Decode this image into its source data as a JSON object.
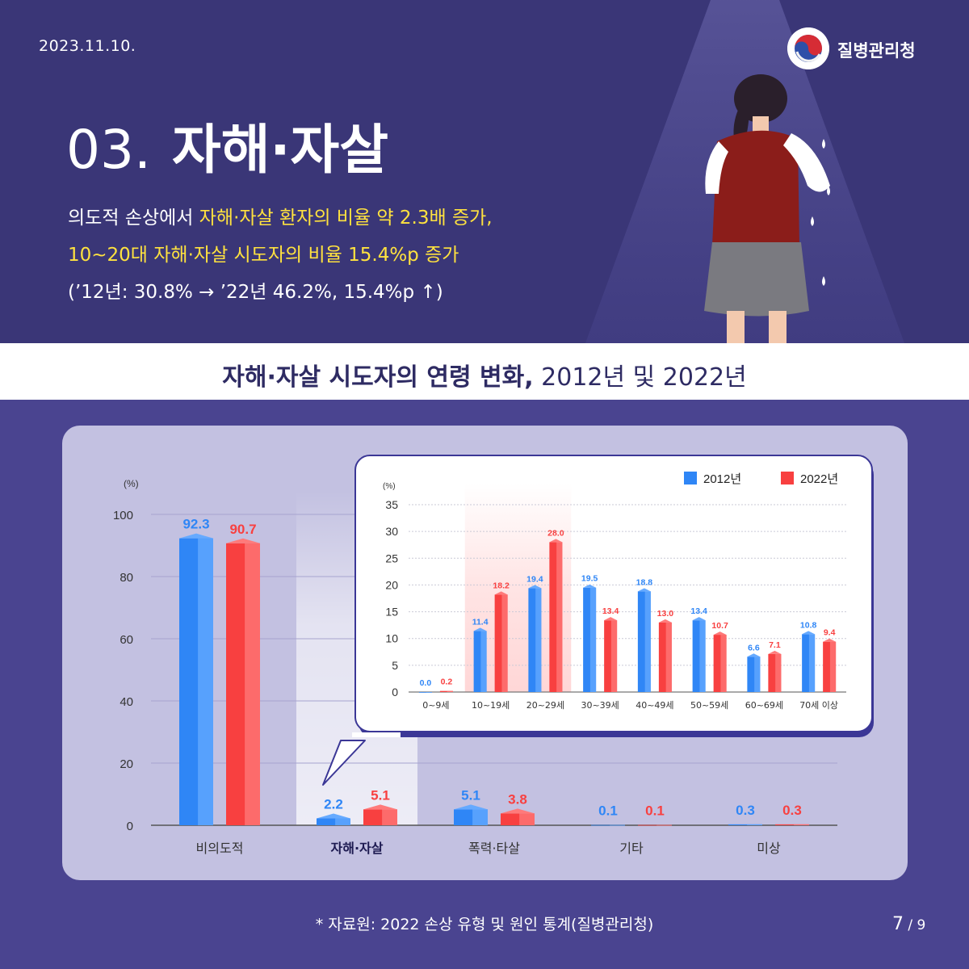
{
  "header": {
    "date": "2023.11.10.",
    "agency": "질병관리청",
    "title_num": "03.",
    "title": "자해·자살",
    "sub1_plain": "의도적 손상에서 ",
    "sub1_highlight": "자해·자살 환자의 비율 약 2.3배 증가,",
    "sub2_highlight": "10~20대 자해·자살 시도자의 비율 15.4%p 증가",
    "sub3": "(’12년: 30.8% → ’22년 46.2%, 15.4%p ↑)"
  },
  "banner": {
    "bold": "자해·자살 시도자의 연령 변화,",
    "plain": " 2012년 및 2022년"
  },
  "colors": {
    "series_2012": "#2f86f6",
    "series_2022": "#f84040",
    "highlight_text": "#ffe23f",
    "background": "#3a3677"
  },
  "chart_data": [
    {
      "type": "bar",
      "ylabel": "(%)",
      "ylim": [
        0,
        100
      ],
      "yticks": [
        0,
        20,
        40,
        60,
        80,
        100
      ],
      "categories": [
        "비의도적",
        "자해·자살",
        "폭력·타살",
        "기타",
        "미상"
      ],
      "emphasized_category": "자해·자살",
      "series": [
        {
          "name": "2012년",
          "values": [
            92.3,
            2.2,
            5.1,
            0.1,
            0.3
          ],
          "labels": [
            "92.3",
            "2.2",
            "5.1",
            "0.1",
            "0.3"
          ]
        },
        {
          "name": "2022년",
          "values": [
            90.7,
            5.1,
            3.8,
            0.1,
            0.3
          ],
          "labels": [
            "90.7",
            "5.1",
            "3.8",
            "0.1",
            "0.3"
          ]
        }
      ],
      "grid": true
    },
    {
      "type": "bar",
      "ylabel": "(%)",
      "ylim": [
        0,
        35
      ],
      "yticks": [
        0,
        5,
        10,
        15,
        20,
        25,
        30,
        35
      ],
      "categories": [
        "0~9세",
        "10~19세",
        "20~29세",
        "30~39세",
        "40~49세",
        "50~59세",
        "60~69세",
        "70세 이상"
      ],
      "highlighted_categories": [
        "10~19세",
        "20~29세"
      ],
      "series": [
        {
          "name": "2012년",
          "values": [
            0.0,
            11.4,
            19.4,
            19.5,
            18.8,
            13.4,
            6.6,
            10.8
          ],
          "labels": [
            "0.0",
            "11.4",
            "19.4",
            "19.5",
            "18.8",
            "13.4",
            "6.6",
            "10.8"
          ]
        },
        {
          "name": "2022년",
          "values": [
            0.2,
            18.2,
            28.0,
            13.4,
            13.0,
            10.7,
            7.1,
            9.4
          ],
          "labels": [
            "0.2",
            "18.2",
            "28.0",
            "13.4",
            "13.0",
            "10.7",
            "7.1",
            "9.4"
          ]
        }
      ],
      "legend": "top-right",
      "grid": true
    }
  ],
  "footer": {
    "source": "* 자료원: 2022 손상 유형 및 원인 통계(질병관리청)",
    "page_current": "7",
    "page_total": " / 9"
  }
}
